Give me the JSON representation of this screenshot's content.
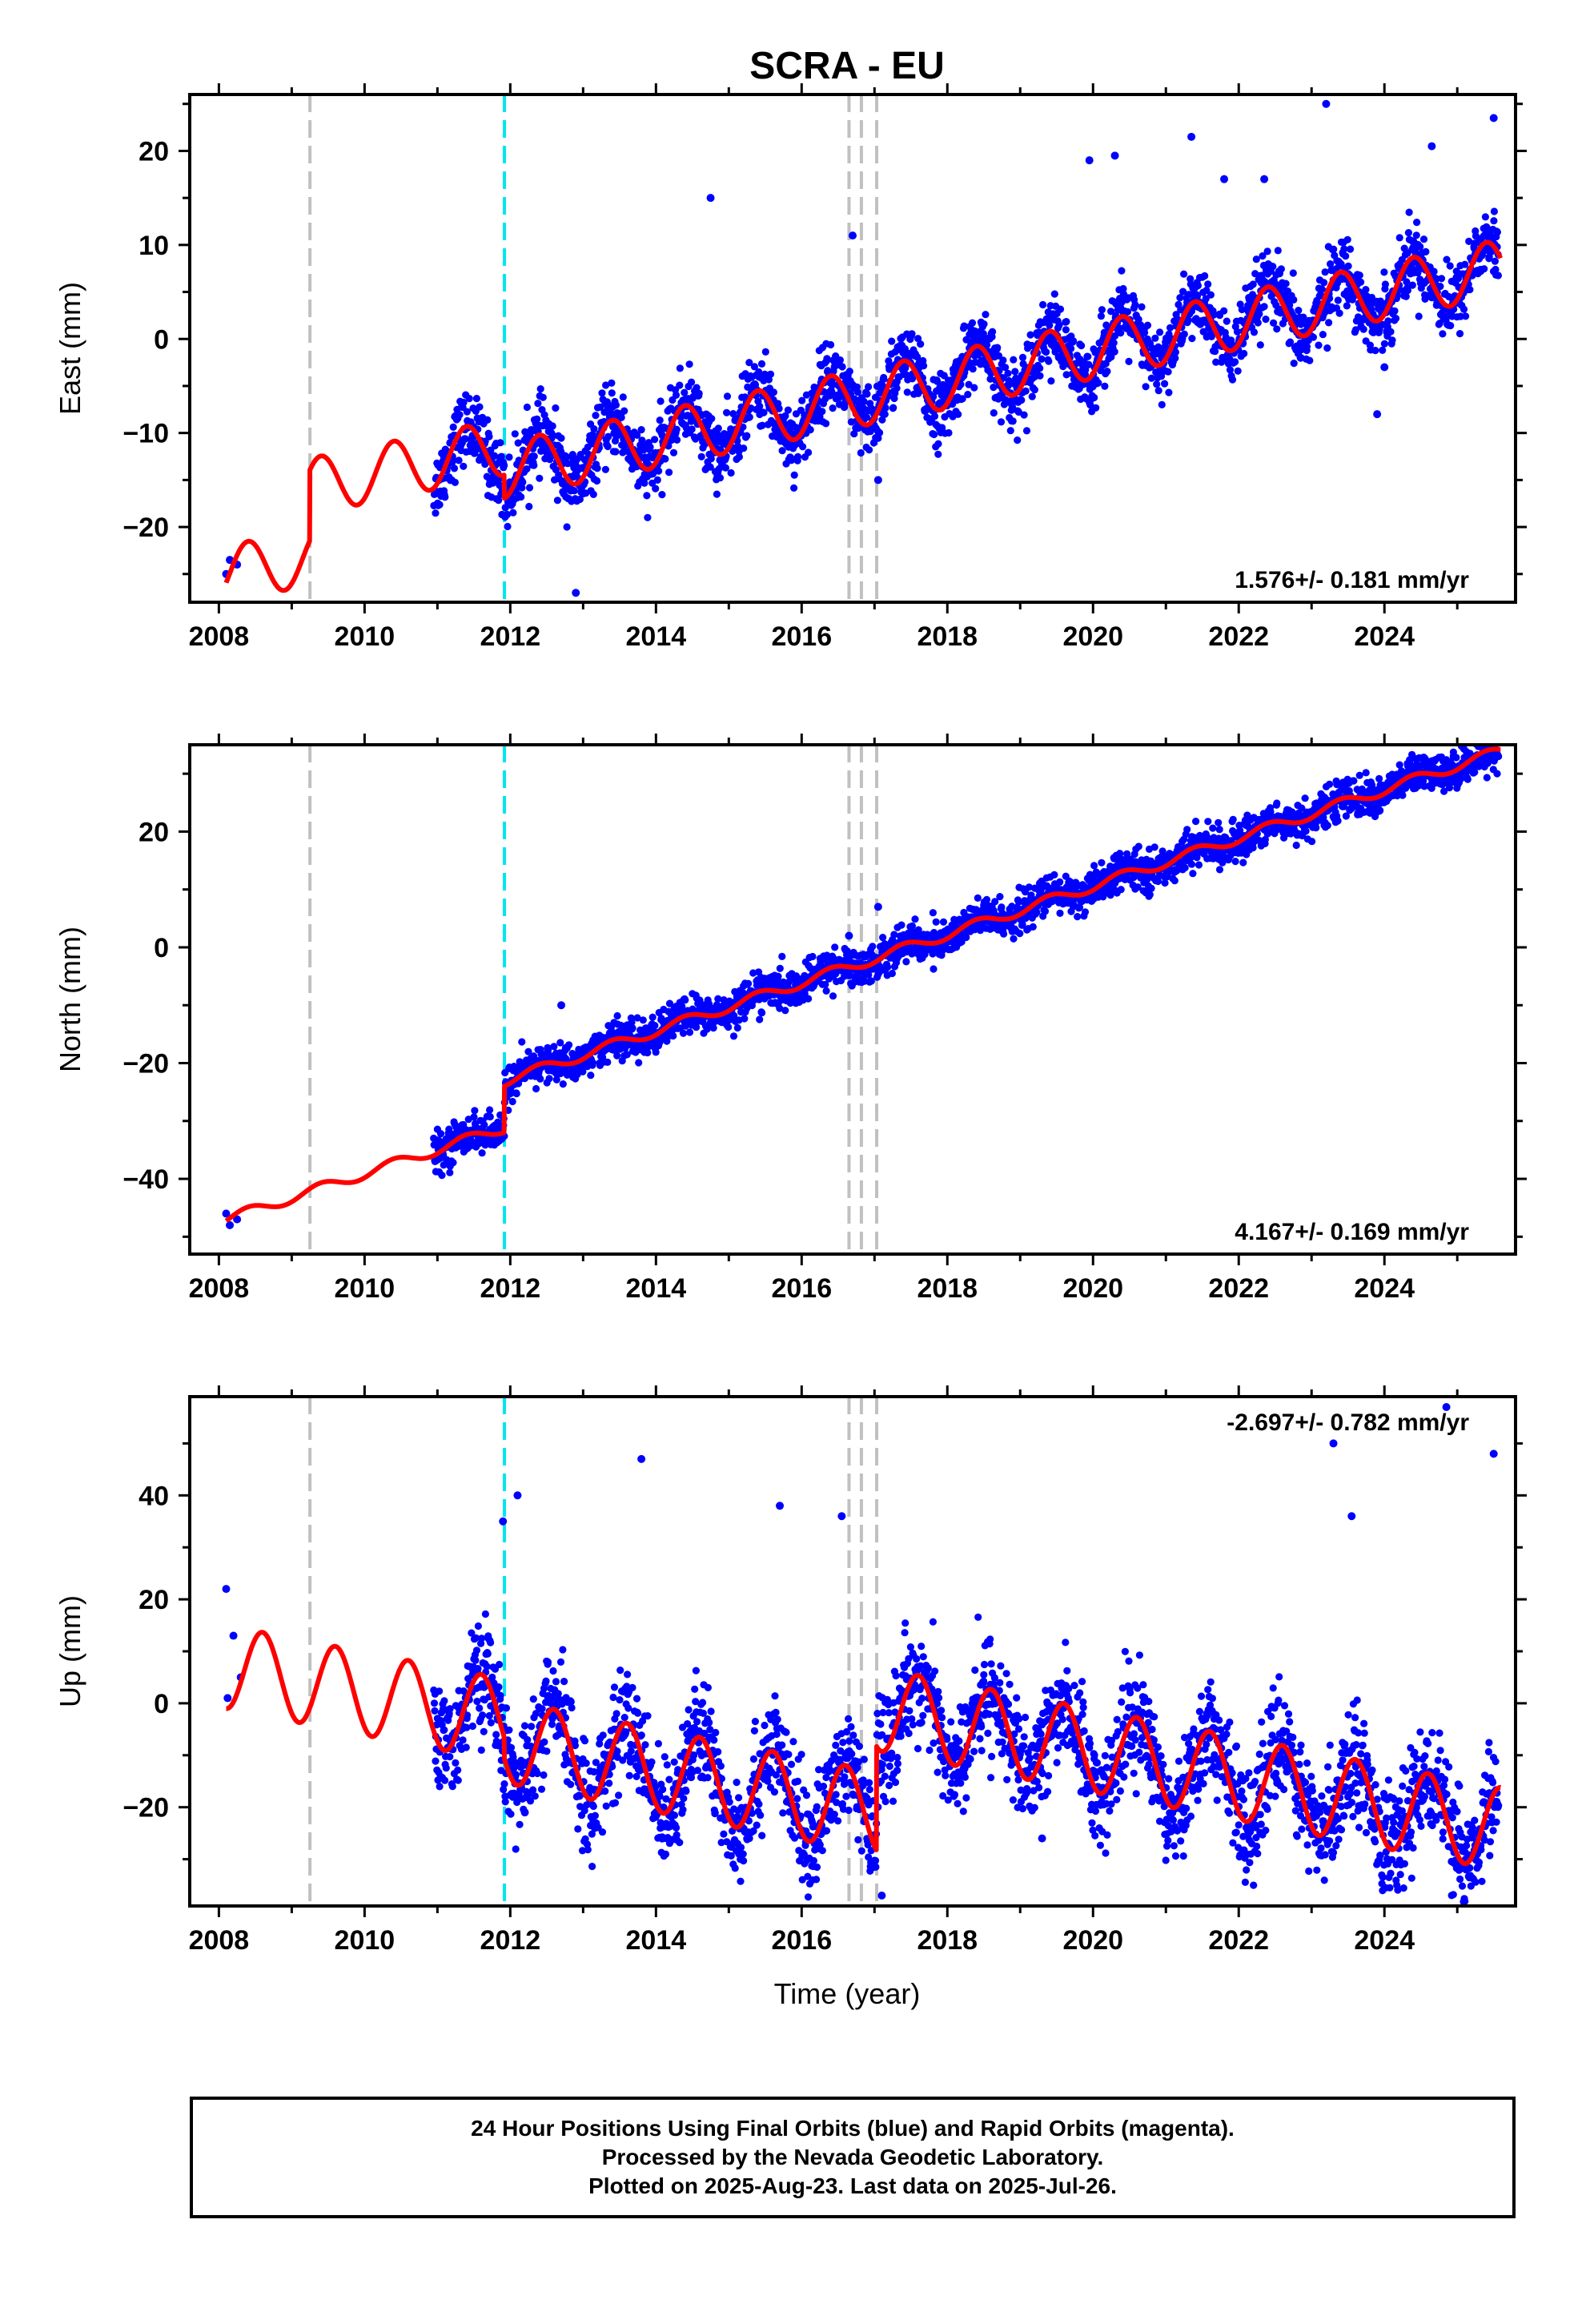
{
  "title": "SCRA - EU",
  "xlabel": "Time (year)",
  "footer": {
    "line1": "24 Hour Positions Using Final Orbits (blue) and Rapid Orbits (magenta).",
    "line2": "Processed by the Nevada Geodetic Laboratory.",
    "line3": "Plotted on 2025-Aug-23. Last data on 2025-Jul-26."
  },
  "colors": {
    "points": "#0000ff",
    "model": "#ff0000",
    "equipment_change_line": "#c0c0c0",
    "earthquake_line": "#00e5ee"
  },
  "event_lines": {
    "gray": [
      2009.25,
      2016.65,
      2016.82,
      2017.03
    ],
    "cyan": [
      2011.92
    ]
  },
  "chart_data": [
    {
      "type": "scatter",
      "name": "east",
      "ylabel": "East (mm)",
      "xlim": [
        2007.6,
        2025.8
      ],
      "ylim": [
        -28,
        26
      ],
      "xticks": [
        2008,
        2010,
        2012,
        2014,
        2016,
        2018,
        2020,
        2022,
        2024
      ],
      "yticks": [
        -20,
        -10,
        0,
        10,
        20
      ],
      "rate_label": "1.576+/- 0.181 mm/yr",
      "rate_position": "bottom-right",
      "model": {
        "start_value": -25,
        "rate": 1.576,
        "annual_amplitude": 3.0,
        "annual_peak": 0.4,
        "steps": [
          {
            "year": 2009.25,
            "offset": 7.5
          },
          {
            "year": 2011.92,
            "offset": -2.5
          }
        ]
      },
      "data_range": [
        2010.95,
        2025.57
      ],
      "early_points": [
        [
          2008.1,
          -25
        ],
        [
          2008.15,
          -23.5
        ],
        [
          2008.25,
          -24
        ]
      ],
      "scatter_sigma": 1.8,
      "outliers": [
        [
          2012.9,
          -27
        ],
        [
          2014.75,
          15
        ],
        [
          2016.7,
          11
        ],
        [
          2017.05,
          -15
        ],
        [
          2019.95,
          19
        ],
        [
          2020.3,
          19.5
        ],
        [
          2021.35,
          21.5
        ],
        [
          2021.8,
          17
        ],
        [
          2022.35,
          17
        ],
        [
          2023.2,
          25
        ],
        [
          2023.9,
          -8
        ],
        [
          2024.65,
          20.5
        ],
        [
          2025.5,
          23.5
        ],
        [
          2022.85,
          -2
        ],
        [
          2024,
          -3
        ]
      ]
    },
    {
      "type": "scatter",
      "name": "north",
      "ylabel": "North (mm)",
      "xlim": [
        2007.6,
        2025.8
      ],
      "ylim": [
        -53,
        35
      ],
      "xticks": [
        2008,
        2010,
        2012,
        2014,
        2016,
        2018,
        2020,
        2022,
        2024
      ],
      "yticks": [
        -40,
        -20,
        0,
        20
      ],
      "rate_label": "4.167+/- 0.169 mm/yr",
      "rate_position": "bottom-right",
      "model": {
        "start_value": -47,
        "rate": 4.167,
        "annual_amplitude": 0.9,
        "annual_peak": 0.4,
        "steps": [
          {
            "year": 2009.25,
            "offset": 0
          },
          {
            "year": 2011.92,
            "offset": 8
          }
        ]
      },
      "data_range": [
        2010.95,
        2025.57
      ],
      "early_points": [
        [
          2008.1,
          -46
        ],
        [
          2008.15,
          -48
        ],
        [
          2008.25,
          -47
        ]
      ],
      "scatter_sigma": 1.6,
      "outliers": [
        [
          2012.7,
          -10
        ],
        [
          2016.65,
          2
        ],
        [
          2017.05,
          7
        ],
        [
          2024.95,
          33
        ],
        [
          2025.2,
          33
        ]
      ]
    },
    {
      "type": "scatter",
      "name": "up",
      "ylabel": "Up (mm)",
      "xlim": [
        2007.6,
        2025.8
      ],
      "ylim": [
        -39,
        59
      ],
      "xticks": [
        2008,
        2010,
        2012,
        2014,
        2016,
        2018,
        2020,
        2022,
        2024
      ],
      "yticks": [
        -20,
        0,
        20,
        40
      ],
      "rate_label": "-2.697+/- 0.782 mm/yr",
      "rate_position": "top-right",
      "model": {
        "start_value": 7,
        "rate": -2.697,
        "annual_amplitude": 8.0,
        "annual_peak": 0.6,
        "steps": [
          {
            "year": 2009.25,
            "offset": 0
          },
          {
            "year": 2011.92,
            "offset": -4
          },
          {
            "year": 2017.03,
            "offset": 20
          }
        ]
      },
      "data_range": [
        2010.95,
        2025.57
      ],
      "early_points": [
        [
          2008.1,
          22
        ],
        [
          2008.12,
          1
        ],
        [
          2008.2,
          13
        ],
        [
          2008.3,
          5
        ]
      ],
      "scatter_sigma": 5.0,
      "outliers": [
        [
          2011.9,
          35
        ],
        [
          2012.1,
          40
        ],
        [
          2012.2,
          -21
        ],
        [
          2013.8,
          47
        ],
        [
          2015.7,
          38
        ],
        [
          2016.55,
          36
        ],
        [
          2019.3,
          -26
        ],
        [
          2023.3,
          50
        ],
        [
          2023.55,
          36
        ],
        [
          2024.85,
          57
        ],
        [
          2025.5,
          48
        ],
        [
          2017.1,
          -37
        ]
      ]
    }
  ]
}
